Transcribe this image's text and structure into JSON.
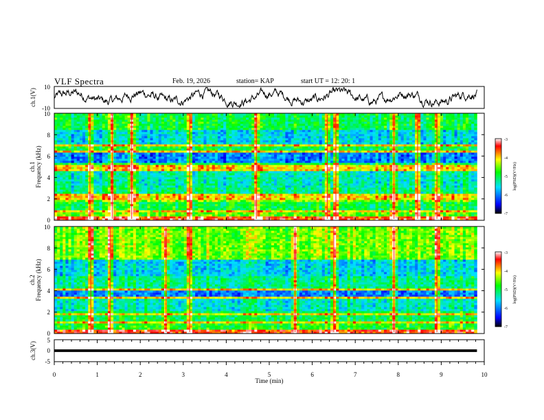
{
  "header": {
    "title": "VLF Spectra",
    "date": "Feb. 19, 2026",
    "station": "station= KAP",
    "start": "start  UT =   12: 20: 1"
  },
  "chart_data": [
    {
      "type": "line",
      "name": "ch1-waveform",
      "ylabel": "ch.1(V)",
      "ylim": [
        -10,
        10
      ],
      "yticks": [
        "10",
        "-10"
      ],
      "xlim": [
        0,
        10
      ],
      "x_end": 9.83,
      "description_values": "noisy trace oscillating roughly between -8 and 8 V"
    },
    {
      "type": "heatmap",
      "name": "ch1-spectrogram",
      "ylabel_line1": "ch.1",
      "ylabel_line2": "Frequency  (kHz)",
      "ylim": [
        0,
        10
      ],
      "yticks": [
        "0",
        "2",
        "4",
        "6",
        "8",
        "10"
      ],
      "xlim": [
        0,
        10
      ],
      "x_end": 9.83,
      "bands": [
        {
          "from": 0.0,
          "to": 0.3,
          "level": -3.5
        },
        {
          "from": 0.3,
          "to": 1.0,
          "level": -4.6
        },
        {
          "from": 1.0,
          "to": 1.8,
          "level": -5.0
        },
        {
          "from": 1.8,
          "to": 2.4,
          "level": -4.5
        },
        {
          "from": 2.4,
          "to": 3.0,
          "level": -5.2
        },
        {
          "from": 3.0,
          "to": 4.8,
          "level": -5.4
        },
        {
          "from": 4.8,
          "to": 5.4,
          "level": -5.0
        },
        {
          "from": 5.4,
          "to": 6.6,
          "level": -6.0
        },
        {
          "from": 6.6,
          "to": 7.2,
          "level": -5.0
        },
        {
          "from": 7.2,
          "to": 8.4,
          "level": -5.6
        },
        {
          "from": 8.4,
          "to": 10.0,
          "level": -5.0
        }
      ],
      "lines_khz": [
        0.9,
        2.1,
        2.3,
        4.8,
        5.1,
        6.4,
        7.0
      ],
      "bursts_min": [
        0.83,
        1.35,
        1.8,
        3.15,
        4.7,
        6.35,
        6.55,
        7.9,
        8.45,
        8.9
      ]
    },
    {
      "type": "heatmap",
      "name": "ch2-spectrogram",
      "ylabel_line1": "ch.2",
      "ylabel_line2": "Frequency  (kHz)",
      "ylim": [
        0,
        10
      ],
      "yticks": [
        "0",
        "2",
        "4",
        "6",
        "8",
        "10"
      ],
      "xlim": [
        0,
        10
      ],
      "x_end": 9.83,
      "bands": [
        {
          "from": 0.0,
          "to": 0.3,
          "level": -3.5
        },
        {
          "from": 0.3,
          "to": 1.2,
          "level": -4.8
        },
        {
          "from": 1.2,
          "to": 2.2,
          "level": -5.0
        },
        {
          "from": 2.2,
          "to": 3.4,
          "level": -5.4
        },
        {
          "from": 3.4,
          "to": 4.2,
          "level": -6.0
        },
        {
          "from": 4.2,
          "to": 5.4,
          "level": -5.2
        },
        {
          "from": 5.4,
          "to": 7.0,
          "level": -5.6
        },
        {
          "from": 7.0,
          "to": 10.0,
          "level": -4.5
        }
      ],
      "lines_khz": [
        1.1,
        1.8,
        3.3,
        4.1
      ],
      "bursts_min": [
        0.85,
        1.3,
        2.6,
        3.15,
        5.6,
        6.5,
        7.9,
        8.9
      ]
    },
    {
      "type": "line",
      "name": "ch3-waveform",
      "ylabel": "ch.3(V)",
      "ylim": [
        -5,
        5
      ],
      "yticks": [
        "5",
        "0",
        "-5"
      ],
      "xlim": [
        0,
        10
      ],
      "x_end": 9.83,
      "level_min": -0.6,
      "level_max": 0.6
    }
  ],
  "xaxis": {
    "label": "Time  (min)",
    "ticks": [
      "0",
      "1",
      "2",
      "3",
      "4",
      "5",
      "6",
      "7",
      "8",
      "9",
      "10"
    ]
  },
  "colorbar": {
    "label": "log(PSD)(V²/Hz)",
    "ticks": [
      "-3",
      "-4",
      "-5",
      "-6",
      "-7"
    ],
    "range": [
      -7,
      -3
    ],
    "colors": [
      "#000000",
      "#0000ff",
      "#00e0ff",
      "#00ff00",
      "#ffff00",
      "#ff0000",
      "#ffffff"
    ]
  }
}
